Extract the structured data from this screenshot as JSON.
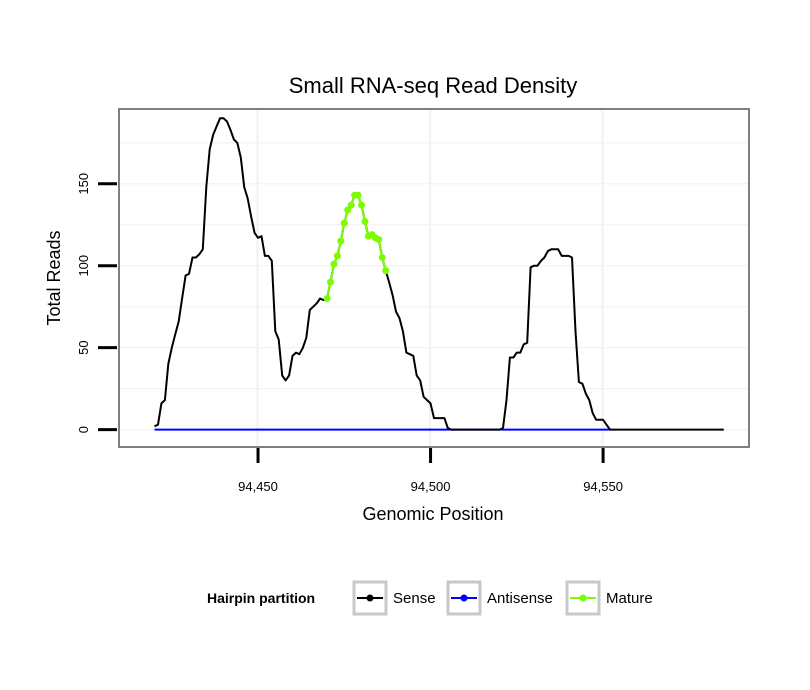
{
  "chart_data": {
    "type": "line",
    "title": "Small RNA-seq Read Density",
    "xlabel": "Genomic Position",
    "ylabel": "Total Reads",
    "xlim": [
      94410,
      94592
    ],
    "ylim": [
      -10,
      195
    ],
    "x_ticks": [
      94450,
      94500,
      94550
    ],
    "x_tick_labels": [
      "94,450",
      "94,500",
      "94,550"
    ],
    "y_ticks": [
      0,
      50,
      100,
      150
    ],
    "y_tick_labels": [
      "0",
      "50",
      "100",
      "150"
    ],
    "grid": true,
    "legend": {
      "title": "Hairpin partition",
      "position": "bottom",
      "entries": [
        {
          "label": "Sense",
          "color": "#000000"
        },
        {
          "label": "Antisense",
          "color": "#0000ff"
        },
        {
          "label": "Mature",
          "color": "#7cfc00"
        }
      ]
    },
    "series": [
      {
        "name": "Sense",
        "color": "#000000",
        "points": [
          [
            94420,
            2
          ],
          [
            94421,
            3
          ],
          [
            94422,
            16
          ],
          [
            94423,
            18
          ],
          [
            94424,
            40
          ],
          [
            94425,
            50
          ],
          [
            94426,
            58
          ],
          [
            94427,
            66
          ],
          [
            94428,
            80
          ],
          [
            94429,
            94
          ],
          [
            94430,
            95
          ],
          [
            94431,
            105
          ],
          [
            94432,
            105
          ],
          [
            94433,
            107
          ],
          [
            94434,
            110
          ],
          [
            94435,
            148
          ],
          [
            94436,
            171
          ],
          [
            94437,
            180
          ],
          [
            94438,
            185
          ],
          [
            94439,
            190
          ],
          [
            94440,
            190
          ],
          [
            94441,
            188
          ],
          [
            94442,
            183
          ],
          [
            94443,
            177
          ],
          [
            94444,
            175
          ],
          [
            94445,
            166
          ],
          [
            94446,
            148
          ],
          [
            94447,
            141
          ],
          [
            94448,
            130
          ],
          [
            94449,
            120
          ],
          [
            94450,
            117
          ],
          [
            94451,
            118
          ],
          [
            94452,
            106
          ],
          [
            94453,
            106
          ],
          [
            94454,
            103
          ],
          [
            94455,
            60
          ],
          [
            94456,
            55
          ],
          [
            94457,
            33
          ],
          [
            94458,
            30
          ],
          [
            94459,
            33
          ],
          [
            94460,
            45
          ],
          [
            94461,
            47
          ],
          [
            94462,
            46
          ],
          [
            94463,
            50
          ],
          [
            94464,
            56
          ],
          [
            94465,
            73
          ],
          [
            94466,
            75
          ],
          [
            94467,
            77
          ],
          [
            94468,
            80
          ],
          [
            94469,
            79
          ],
          [
            94470,
            80
          ],
          [
            94471,
            90
          ],
          [
            94472,
            101
          ],
          [
            94473,
            106
          ],
          [
            94474,
            115
          ],
          [
            94475,
            126
          ],
          [
            94476,
            134
          ],
          [
            94477,
            137
          ],
          [
            94478,
            143
          ],
          [
            94479,
            143
          ],
          [
            94480,
            137
          ],
          [
            94481,
            127
          ],
          [
            94482,
            118
          ],
          [
            94483,
            119
          ],
          [
            94484,
            117
          ],
          [
            94485,
            116
          ],
          [
            94486,
            105
          ],
          [
            94487,
            97
          ],
          [
            94488,
            90
          ],
          [
            94489,
            82
          ],
          [
            94490,
            72
          ],
          [
            94491,
            68
          ],
          [
            94492,
            60
          ],
          [
            94493,
            47
          ],
          [
            94494,
            46
          ],
          [
            94495,
            45
          ],
          [
            94496,
            33
          ],
          [
            94497,
            30
          ],
          [
            94498,
            20
          ],
          [
            94499,
            18
          ],
          [
            94500,
            16
          ],
          [
            94501,
            7
          ],
          [
            94502,
            7
          ],
          [
            94503,
            7
          ],
          [
            94504,
            7
          ],
          [
            94505,
            1
          ],
          [
            94506,
            0
          ],
          [
            94520,
            0
          ],
          [
            94521,
            1
          ],
          [
            94522,
            18
          ],
          [
            94523,
            44
          ],
          [
            94524,
            44
          ],
          [
            94525,
            47
          ],
          [
            94526,
            47
          ],
          [
            94527,
            52
          ],
          [
            94528,
            53
          ],
          [
            94529,
            99
          ],
          [
            94530,
            100
          ],
          [
            94531,
            100
          ],
          [
            94532,
            103
          ],
          [
            94533,
            105
          ],
          [
            94534,
            109
          ],
          [
            94535,
            110
          ],
          [
            94536,
            110
          ],
          [
            94537,
            110
          ],
          [
            94538,
            106
          ],
          [
            94539,
            106
          ],
          [
            94540,
            106
          ],
          [
            94541,
            105
          ],
          [
            94542,
            60
          ],
          [
            94543,
            29
          ],
          [
            94544,
            28
          ],
          [
            94545,
            22
          ],
          [
            94546,
            18
          ],
          [
            94547,
            10
          ],
          [
            94548,
            6
          ],
          [
            94549,
            6
          ],
          [
            94550,
            6
          ],
          [
            94551,
            3
          ],
          [
            94552,
            0
          ],
          [
            94585,
            0
          ]
        ]
      },
      {
        "name": "Antisense",
        "color": "#0000ff",
        "points": [
          [
            94420,
            0
          ],
          [
            94552,
            0
          ]
        ]
      },
      {
        "name": "Mature",
        "color": "#7cfc00",
        "points": [
          [
            94470,
            80
          ],
          [
            94471,
            90
          ],
          [
            94472,
            101
          ],
          [
            94473,
            106
          ],
          [
            94474,
            115
          ],
          [
            94475,
            126
          ],
          [
            94476,
            134
          ],
          [
            94477,
            137
          ],
          [
            94478,
            143
          ],
          [
            94479,
            143
          ],
          [
            94480,
            137
          ],
          [
            94481,
            127
          ],
          [
            94482,
            118
          ],
          [
            94483,
            119
          ],
          [
            94484,
            117
          ],
          [
            94485,
            116
          ],
          [
            94486,
            105
          ],
          [
            94487,
            97
          ]
        ]
      }
    ]
  }
}
